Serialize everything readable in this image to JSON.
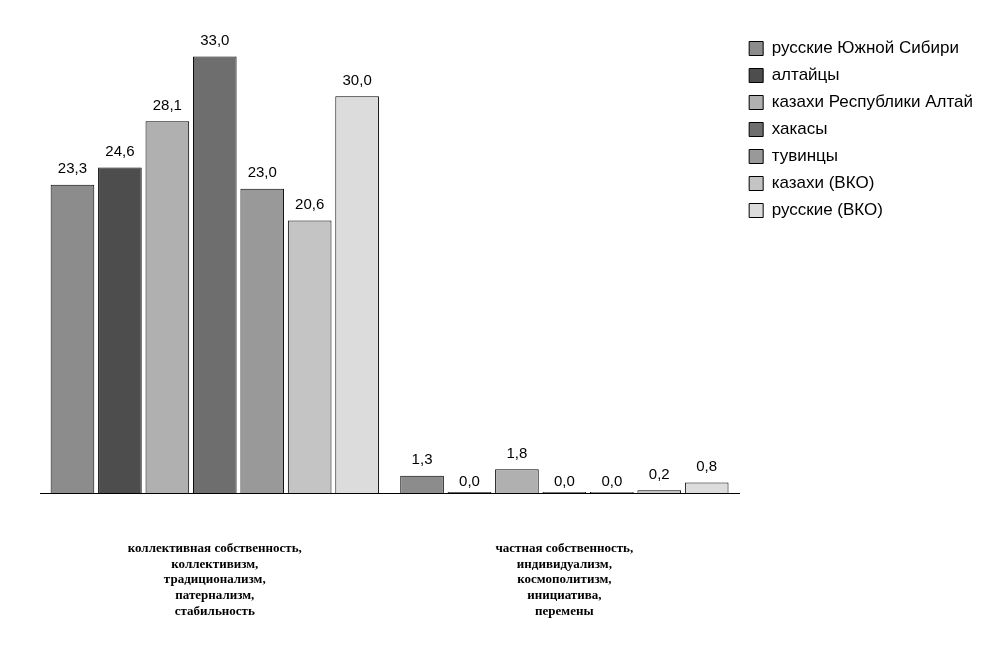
{
  "chart_data": {
    "type": "bar",
    "categories": [
      "коллективная собственность,\nколлективизм,\nтрадиционализм,\nпатернализм,\nстабильность",
      "частная собственность,\nиндивидуализм,\nкосмополитизм,\nинициатива,\nперемены"
    ],
    "series": [
      {
        "name": "русские Южной Сибири",
        "color": "#8c8c8c",
        "values": [
          23.3,
          1.3
        ],
        "value_labels": [
          "23,3",
          "1,3"
        ]
      },
      {
        "name": "алтайцы",
        "color": "#4d4d4d",
        "values": [
          24.6,
          0.0
        ],
        "value_labels": [
          "24,6",
          "0,0"
        ]
      },
      {
        "name": "казахи Республики Алтай",
        "color": "#b0b0b0",
        "values": [
          28.1,
          1.8
        ],
        "value_labels": [
          "28,1",
          "1,8"
        ]
      },
      {
        "name": "хакасы",
        "color": "#6e6e6e",
        "values": [
          33.0,
          0.0
        ],
        "value_labels": [
          "33,0",
          "0,0"
        ]
      },
      {
        "name": "тувинцы",
        "color": "#999999",
        "values": [
          23.0,
          0.0
        ],
        "value_labels": [
          "23,0",
          "0,0"
        ]
      },
      {
        "name": "казахи (ВКО)",
        "color": "#c4c4c4",
        "values": [
          20.6,
          0.2
        ],
        "value_labels": [
          "20,6",
          "0,2"
        ]
      },
      {
        "name": "русские (ВКО)",
        "color": "#dcdcdc",
        "values": [
          30.0,
          0.8
        ],
        "value_labels": [
          "30,0",
          "0,8"
        ]
      }
    ],
    "legend": "top right",
    "grid": false
  }
}
